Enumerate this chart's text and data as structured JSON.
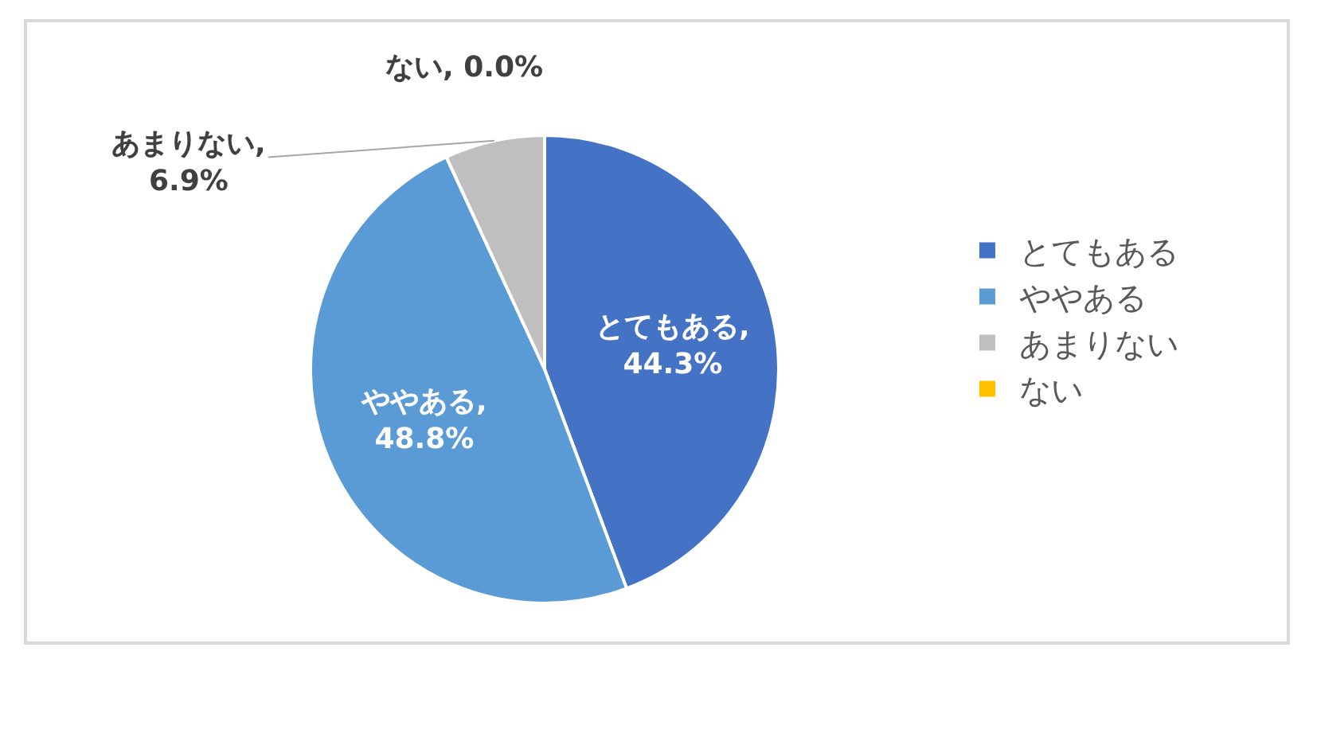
{
  "chart_data": {
    "type": "pie",
    "categories": [
      "とてもある",
      "ややある",
      "あまりない",
      "ない"
    ],
    "values": [
      44.3,
      48.8,
      6.9,
      0.0
    ],
    "colors": [
      "#4472c4",
      "#5b9bd5",
      "#bfbfbf",
      "#ffc000"
    ],
    "value_labels": [
      "とてもある, 44.3%",
      "ややある, 48.8%",
      "あまりない, 6.9%",
      "ない, 0.0%"
    ],
    "legend": "right"
  }
}
